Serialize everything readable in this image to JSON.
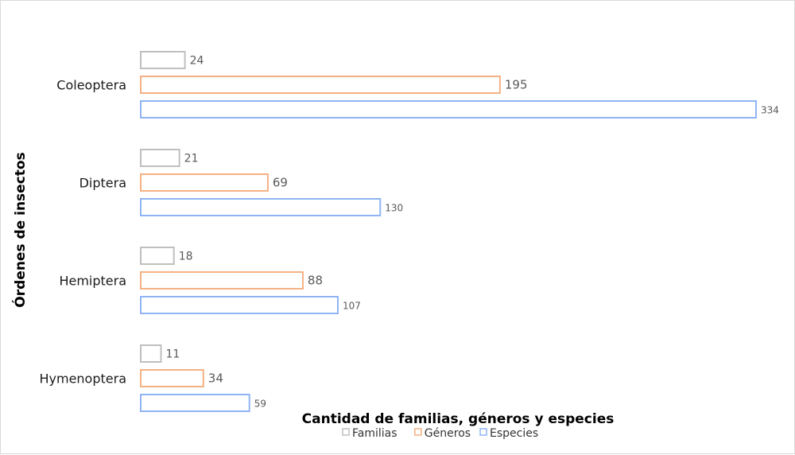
{
  "chart_data": {
    "type": "bar",
    "orientation": "horizontal",
    "categories": [
      "Coleoptera",
      "Diptera",
      "Hemiptera",
      "Hymenoptera"
    ],
    "series": [
      {
        "name": "Familias",
        "values": [
          24,
          21,
          18,
          11
        ],
        "color": "#bfbfbf"
      },
      {
        "name": "Géneros",
        "values": [
          195,
          69,
          88,
          34
        ],
        "color": "#f4b183"
      },
      {
        "name": "Especies",
        "values": [
          334,
          130,
          107,
          59
        ],
        "color": "#8fb4f4"
      }
    ],
    "title": "",
    "xlabel": "Cantidad de familias, géneros y especies",
    "ylabel": "Órdenes de insectos",
    "xlim": [
      0,
      334
    ],
    "grid": false,
    "legend_position": "bottom",
    "data_labels": true
  }
}
